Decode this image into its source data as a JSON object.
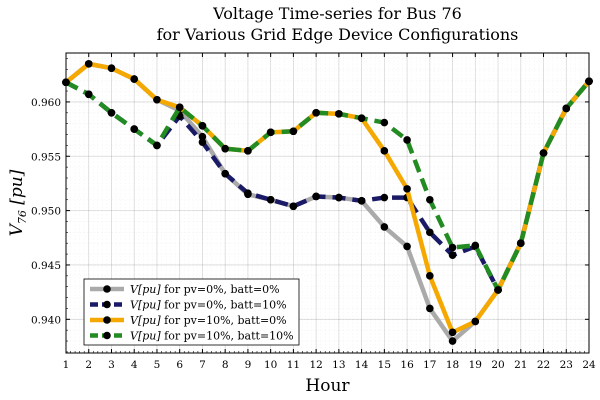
{
  "chart_data": {
    "type": "line",
    "title": [
      "Voltage Time-series for Bus 76",
      "for Various Grid Edge Device Configurations"
    ],
    "xlabel": "Hour",
    "ylabel": {
      "main": "V",
      "sub": "76",
      "rest": " [pu]"
    },
    "xlim": [
      1,
      24
    ],
    "ylim": [
      0.9369,
      0.9645
    ],
    "xticks": [
      1,
      2,
      3,
      4,
      5,
      6,
      7,
      8,
      9,
      10,
      11,
      12,
      13,
      14,
      15,
      16,
      17,
      18,
      19,
      20,
      21,
      22,
      23,
      24
    ],
    "xtick_labels": [
      "1",
      "2",
      "3",
      "4",
      "5",
      "6",
      "7",
      "8",
      "9",
      "10",
      "11",
      "12",
      "13",
      "14",
      "15",
      "16",
      "17",
      "18",
      "19",
      "20",
      "21",
      "22",
      "23",
      "24"
    ],
    "yticks": [
      0.94,
      0.945,
      0.95,
      0.955,
      0.96
    ],
    "ytick_labels": [
      "0.940",
      "0.945",
      "0.950",
      "0.955",
      "0.960"
    ],
    "grid": true,
    "legend_position": "bottom-left",
    "x": [
      1,
      2,
      3,
      4,
      5,
      6,
      7,
      8,
      9,
      10,
      11,
      12,
      13,
      14,
      15,
      16,
      17,
      18,
      19,
      20,
      21,
      22,
      23,
      24
    ],
    "series": [
      {
        "name_italic": "V[pu]",
        "name_rest": " for pv=0%, batt=0%",
        "color": "#aaaaaa",
        "dash": "solid",
        "values": [
          0.9618,
          0.9635,
          0.9631,
          0.9621,
          0.9602,
          0.9592,
          0.9568,
          0.9534,
          0.9515,
          0.951,
          0.9504,
          0.9513,
          0.9512,
          0.9509,
          0.9485,
          0.9467,
          0.941,
          0.938,
          0.9398,
          0.9427,
          0.947,
          0.9553,
          0.9594,
          0.9619
        ]
      },
      {
        "name_italic": "V[pu]",
        "name_rest": " for pv=0%, batt=10%",
        "color": "#1a1a66",
        "dash": "dashed",
        "values": [
          0.9618,
          0.9607,
          0.959,
          0.9575,
          0.956,
          0.9587,
          0.9563,
          0.9534,
          0.9516,
          0.951,
          0.9504,
          0.9513,
          0.9512,
          0.9509,
          0.9512,
          0.9512,
          0.948,
          0.9459,
          0.9467,
          0.9427,
          0.947,
          0.9553,
          0.9594,
          0.9619
        ]
      },
      {
        "name_italic": "V[pu]",
        "name_rest": " for pv=10%, batt=0%",
        "color": "#f5a800",
        "dash": "solid",
        "values": [
          0.9618,
          0.9635,
          0.9631,
          0.9621,
          0.9602,
          0.9595,
          0.9578,
          0.9557,
          0.9555,
          0.9572,
          0.9573,
          0.959,
          0.9589,
          0.9585,
          0.9555,
          0.952,
          0.944,
          0.9388,
          0.9398,
          0.9427,
          0.947,
          0.9553,
          0.9594,
          0.9619
        ]
      },
      {
        "name_italic": "V[pu]",
        "name_rest": " for pv=10%, batt=10%",
        "color": "#228b22",
        "dash": "dashed",
        "values": [
          0.9618,
          0.9607,
          0.959,
          0.9575,
          0.956,
          0.9595,
          0.9578,
          0.9557,
          0.9555,
          0.9572,
          0.9573,
          0.959,
          0.9589,
          0.9585,
          0.9581,
          0.9565,
          0.951,
          0.9466,
          0.9468,
          0.9427,
          0.947,
          0.9553,
          0.9594,
          0.9619
        ]
      }
    ]
  }
}
